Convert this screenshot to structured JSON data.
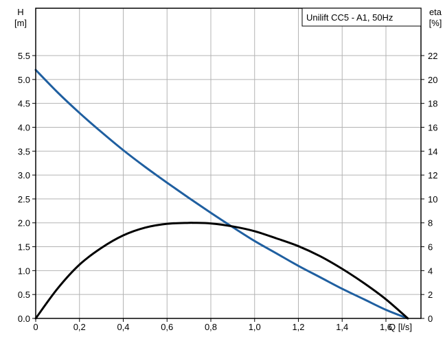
{
  "chart_data": {
    "type": "line",
    "title": "Unilift CC5 - A1, 50Hz",
    "x_label": "Q [l/s]",
    "x_ticks": [
      "0",
      "0,2",
      "0,4",
      "0,6",
      "0,8",
      "1,0",
      "1,2",
      "1,4",
      "1,6"
    ],
    "xlim": [
      0,
      1.76
    ],
    "y_left_label": "H\n[m]",
    "y_left_ticks": [
      "0.0",
      "0.5",
      "1.0",
      "1.5",
      "2.0",
      "2.5",
      "3.0",
      "3.5",
      "4.0",
      "4.5",
      "5.0",
      "5.5"
    ],
    "y_left_lim": [
      0,
      5.5
    ],
    "y_right_label": "eta\n[%]",
    "y_right_ticks": [
      "0",
      "2",
      "4",
      "6",
      "8",
      "10",
      "12",
      "14",
      "16",
      "18",
      "20",
      "22"
    ],
    "y_right_lim": [
      0,
      22
    ],
    "grid": true,
    "series": [
      {
        "axis": "left",
        "color": "#1f5fa0",
        "x": [
          0,
          0.1,
          0.2,
          0.3,
          0.4,
          0.5,
          0.6,
          0.7,
          0.8,
          0.9,
          1.0,
          1.1,
          1.2,
          1.3,
          1.4,
          1.5,
          1.6,
          1.7
        ],
        "y": [
          5.2,
          4.73,
          4.3,
          3.9,
          3.52,
          3.17,
          2.84,
          2.52,
          2.21,
          1.91,
          1.62,
          1.36,
          1.1,
          0.86,
          0.62,
          0.4,
          0.18,
          0.0
        ]
      },
      {
        "axis": "right",
        "color": "#000000",
        "x": [
          0,
          0.1,
          0.2,
          0.3,
          0.4,
          0.5,
          0.6,
          0.7,
          0.72,
          0.8,
          0.9,
          1.0,
          1.1,
          1.2,
          1.3,
          1.4,
          1.5,
          1.6,
          1.7
        ],
        "y": [
          0,
          2.5,
          4.5,
          5.9,
          6.95,
          7.6,
          7.92,
          8.0,
          8.0,
          7.95,
          7.7,
          7.3,
          6.7,
          6.05,
          5.2,
          4.15,
          2.95,
          1.6,
          0.0
        ]
      }
    ]
  }
}
